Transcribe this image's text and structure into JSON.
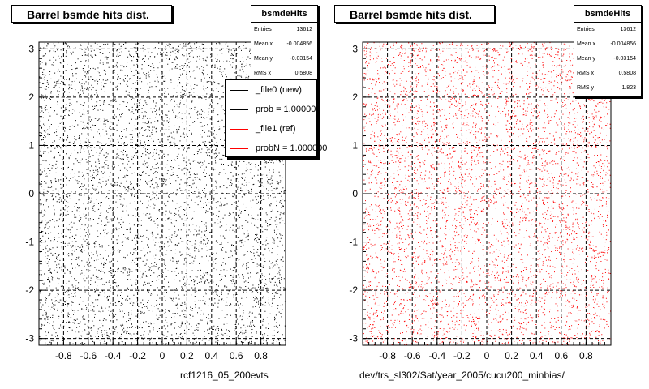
{
  "chart_data": [
    {
      "type": "scatter",
      "title": "Barrel bsmde hits dist.",
      "xlabel": "rcf1216_05_200evts",
      "ylabel": "",
      "xlim": [
        -1.0,
        1.0
      ],
      "ylim": [
        -3.14,
        3.14
      ],
      "xticks": [
        "-0.8",
        "-0.6",
        "-0.4",
        "-0.2",
        "0",
        "0.2",
        "0.4",
        "0.6",
        "0.8"
      ],
      "yticks": [
        "-3",
        "-2",
        "-1",
        "0",
        "1",
        "2",
        "3"
      ],
      "grid": true,
      "marker_color": "#000000",
      "stats": {
        "name": "bsmdeHits",
        "entries_label": "Entries",
        "entries": "13612",
        "mean_x_label": "Mean x",
        "mean_x": "-0.004856",
        "mean_y_label": "Mean y",
        "mean_y": "-0.03154",
        "rms_x_label": "RMS x",
        "rms_x": "0.5808"
      },
      "legend": [
        {
          "label": "_file0 (new)",
          "color": "#000000"
        },
        {
          "label": "prob = 1.000000",
          "color": "#000000"
        },
        {
          "label": "_file1 (ref)",
          "color": "#ff0000"
        },
        {
          "label": "probN = 1.000000",
          "color": "#ff0000"
        }
      ],
      "legend_position": "top-right"
    },
    {
      "type": "scatter",
      "title": "Barrel bsmde hits dist.",
      "xlabel": "dev/trs_sl302/Sat/year_2005/cucu200_minbias/",
      "ylabel": "",
      "xlim": [
        -1.0,
        1.0
      ],
      "ylim": [
        -3.14,
        3.14
      ],
      "xticks": [
        "-0.8",
        "-0.6",
        "-0.4",
        "-0.2",
        "0",
        "0.2",
        "0.4",
        "0.6",
        "0.8"
      ],
      "yticks": [
        "-3",
        "-2",
        "-1",
        "0",
        "1",
        "2",
        "3"
      ],
      "grid": true,
      "marker_color": "#ff0000",
      "stats": {
        "name": "bsmdeHits",
        "entries_label": "Entries",
        "entries": "13612",
        "mean_x_label": "Mean x",
        "mean_x": "-0.004856",
        "mean_y_label": "Mean y",
        "mean_y": "-0.03154",
        "rms_x_label": "RMS x",
        "rms_x": "0.5808",
        "rms_y_label": "RMS y",
        "rms_y": "1.823"
      }
    }
  ]
}
